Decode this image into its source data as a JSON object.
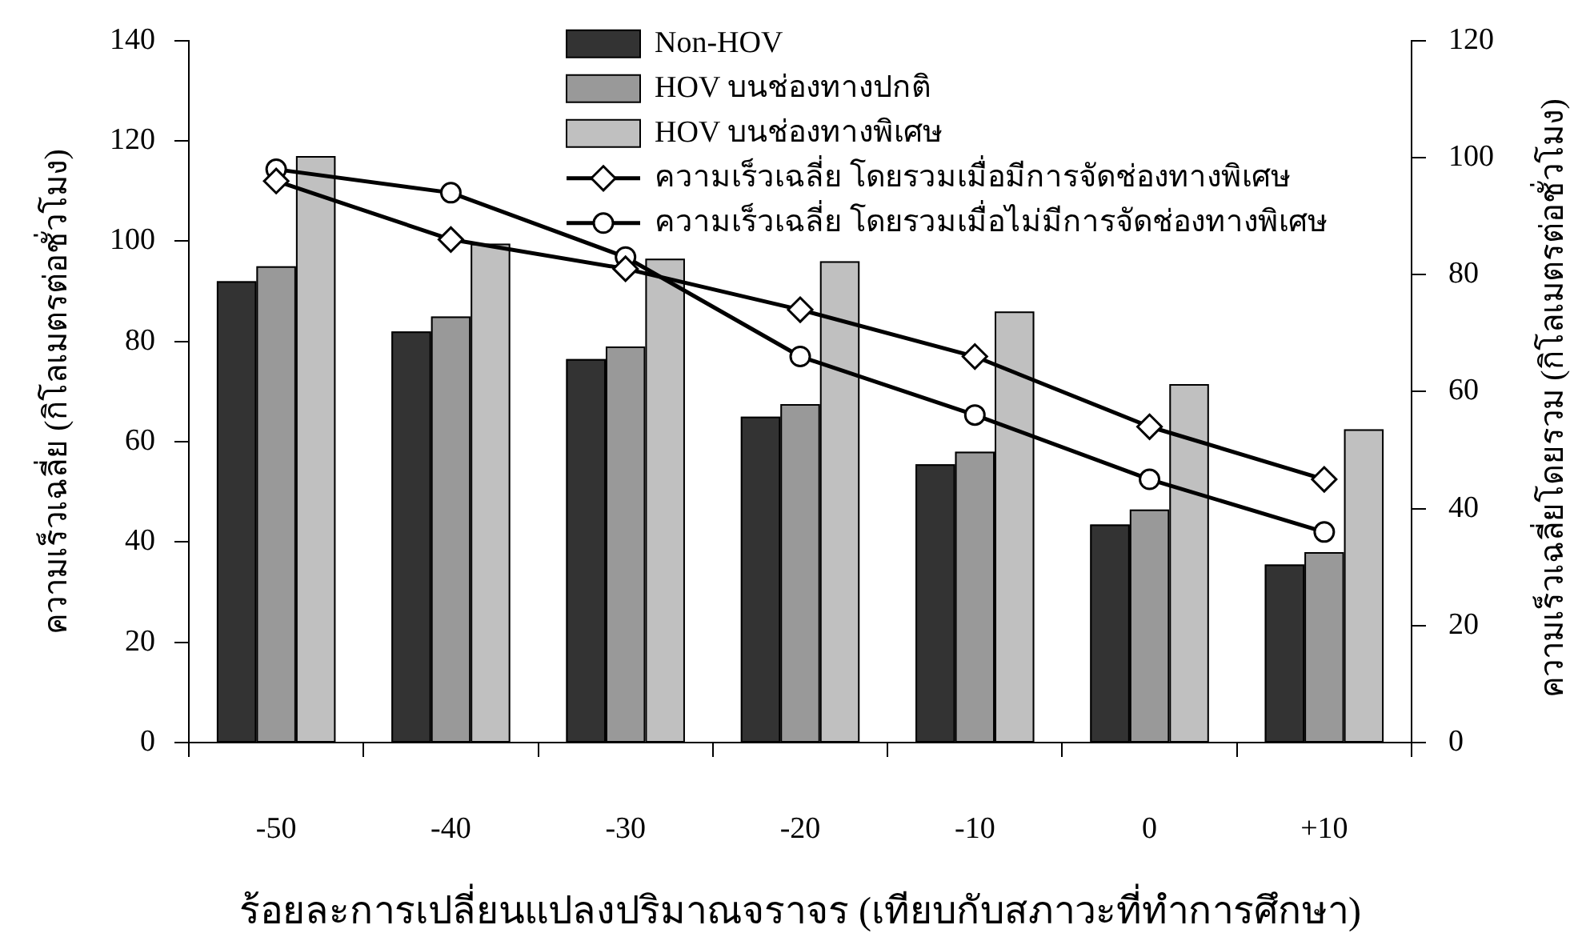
{
  "chart_data": {
    "type": "bar",
    "xlabel": "ร้อยละการเปลี่ยนแปลงปริมาณจราจร (เทียบกับสภาวะที่ทำการศึกษา)",
    "ylabel": "ความเร็วเฉลี่ย (กิโลเมตรต่อชั่วโมง)",
    "y2label": "ความเร็วเฉลี่ยโดยรวม (กิโลเมตรต่อชั่วโมง)",
    "categories": [
      "-50",
      "-40",
      "-30",
      "-20",
      "-10",
      "0",
      "+10"
    ],
    "series": [
      {
        "name": "Non-HOV",
        "color": "#333333",
        "values": [
          92,
          82,
          76.5,
          65,
          55.5,
          43.5,
          35.5
        ]
      },
      {
        "name": "HOV บนช่องทางปกติ",
        "color": "#999999",
        "values": [
          95,
          85,
          79,
          67.5,
          58,
          46.5,
          38
        ]
      },
      {
        "name": "HOV บนช่องทางพิเศษ",
        "color": "#c0c0c0",
        "values": [
          117,
          99.5,
          96.5,
          96,
          86,
          71.5,
          62.5
        ]
      },
      {
        "name": "ความเร็วเฉลี่ย โดยรวมเมื่อมีการจัดช่องทางพิเศษ",
        "type": "line",
        "axis": "y2",
        "marker": "diamond",
        "color": "#000000",
        "values": [
          96,
          86,
          81,
          74,
          66,
          54,
          45
        ]
      },
      {
        "name": "ความเร็วเฉลี่ย โดยรวมเมื่อไม่มีการจัดช่องทางพิเศษ",
        "type": "line",
        "axis": "y2",
        "marker": "circle",
        "color": "#000000",
        "values": [
          98,
          94,
          83,
          66,
          56,
          45,
          36
        ]
      }
    ],
    "ylim": [
      0,
      140
    ],
    "yticks": [
      0,
      20,
      40,
      60,
      80,
      100,
      120,
      140
    ],
    "y2lim": [
      0,
      120
    ],
    "y2ticks": [
      0,
      20,
      40,
      60,
      80,
      100,
      120
    ],
    "grid": false,
    "legend": "top right"
  }
}
